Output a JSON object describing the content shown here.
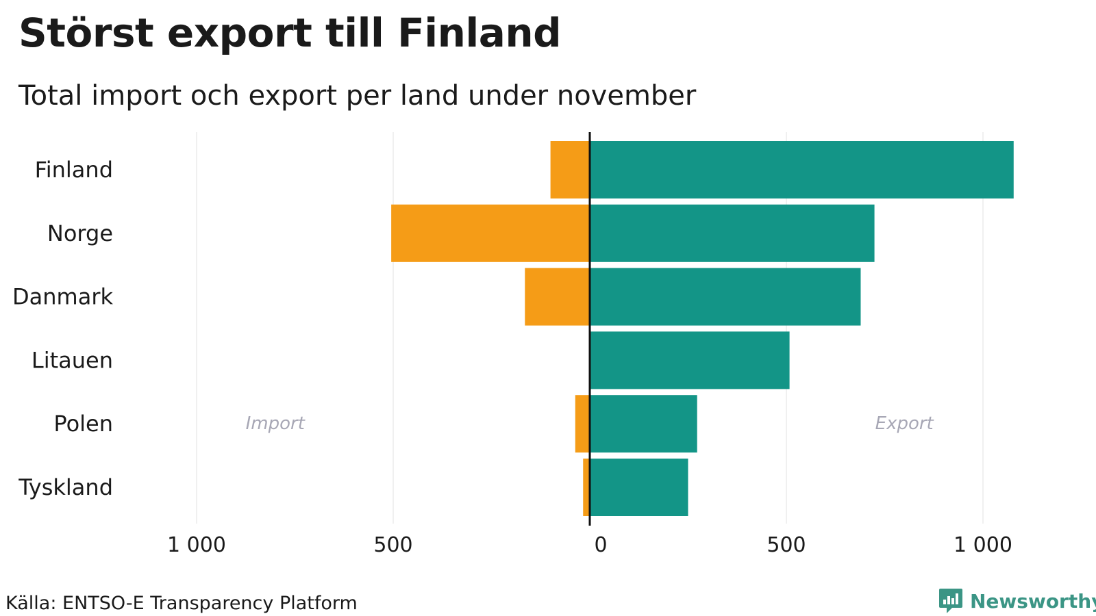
{
  "header": {
    "title": "Störst export till Finland",
    "subtitle": "Total import och export per land under november"
  },
  "footer": {
    "source": "Källa: ENTSO-E Transparency Platform",
    "brand": "Newsworthy"
  },
  "colors": {
    "import": "#F59C17",
    "export": "#139587",
    "zero_line": "#111111",
    "grid": "#e6e6e6",
    "annotation": "#a7a7b5",
    "brand": "#3b9585"
  },
  "chart_data": {
    "type": "bar",
    "orientation": "horizontal-diverging",
    "title": "Störst export till Finland",
    "subtitle": "Total import och export per land under november",
    "categories": [
      "Finland",
      "Norge",
      "Danmark",
      "Litauen",
      "Polen",
      "Tyskland"
    ],
    "series": [
      {
        "name": "Import",
        "values": [
          100,
          505,
          165,
          0,
          37,
          17
        ]
      },
      {
        "name": "Export",
        "values": [
          1078,
          724,
          689,
          508,
          273,
          250
        ]
      }
    ],
    "xlim": [
      -1000,
      1000
    ],
    "xticks": [
      -1000,
      -500,
      0,
      500,
      1000
    ],
    "xtick_labels": [
      "1 000",
      "500",
      "0",
      "500",
      "1 000"
    ],
    "annotations": [
      {
        "text": "Import",
        "category": "Polen",
        "value": -800
      },
      {
        "text": "Export",
        "category": "Polen",
        "value": 800
      }
    ],
    "grid": true,
    "legend": "none"
  }
}
